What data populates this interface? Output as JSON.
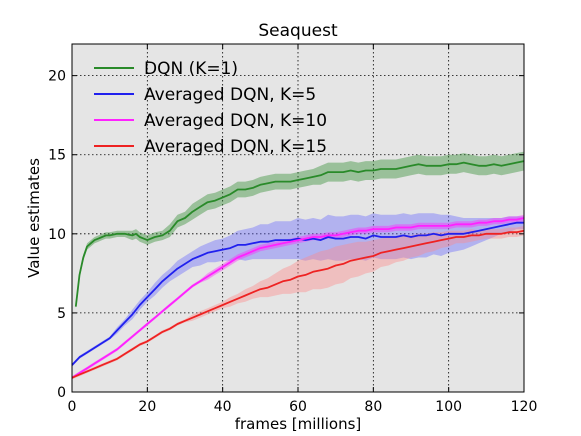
{
  "chart_data": {
    "type": "line",
    "title": "Seaquest",
    "xlabel": "frames [millions]",
    "ylabel": "Value estimates",
    "xlim": [
      0,
      120
    ],
    "ylim": [
      0,
      22
    ],
    "xticks": [
      0,
      20,
      40,
      60,
      80,
      100,
      120
    ],
    "yticks": [
      0,
      5,
      10,
      15,
      20
    ],
    "grid": true,
    "legend_position": "top-left",
    "background": "#e5e5e5",
    "series": [
      {
        "name": "DQN (K=1)",
        "color": "#2a8a2a",
        "band_color": "#2a8a2a",
        "x": [
          1,
          2,
          3,
          4,
          5,
          6,
          7,
          8,
          9,
          10,
          12,
          14,
          16,
          17,
          18,
          19,
          20,
          22,
          24,
          26,
          28,
          30,
          32,
          34,
          36,
          38,
          40,
          42,
          44,
          46,
          48,
          50,
          52,
          54,
          56,
          58,
          60,
          62,
          64,
          66,
          68,
          70,
          72,
          74,
          76,
          78,
          80,
          82,
          84,
          86,
          88,
          90,
          92,
          94,
          96,
          98,
          100,
          102,
          104,
          106,
          108,
          110,
          112,
          114,
          116,
          118,
          120
        ],
        "values": [
          5.4,
          7.4,
          8.5,
          9.2,
          9.4,
          9.6,
          9.7,
          9.8,
          9.9,
          9.9,
          10.0,
          10.0,
          9.9,
          10.0,
          9.8,
          9.7,
          9.6,
          9.8,
          9.9,
          10.2,
          10.8,
          11.0,
          11.4,
          11.7,
          12.0,
          12.1,
          12.3,
          12.5,
          12.8,
          12.8,
          12.9,
          13.1,
          13.2,
          13.3,
          13.3,
          13.3,
          13.4,
          13.5,
          13.6,
          13.7,
          13.9,
          13.9,
          13.9,
          14.0,
          13.9,
          14.0,
          14.0,
          14.1,
          14.1,
          14.1,
          14.2,
          14.3,
          14.4,
          14.3,
          14.3,
          14.3,
          14.4,
          14.4,
          14.5,
          14.4,
          14.3,
          14.3,
          14.4,
          14.3,
          14.4,
          14.5,
          14.6
        ],
        "spread": [
          0.1,
          0.2,
          0.2,
          0.2,
          0.2,
          0.2,
          0.2,
          0.2,
          0.2,
          0.2,
          0.2,
          0.2,
          0.3,
          0.3,
          0.3,
          0.3,
          0.3,
          0.3,
          0.3,
          0.4,
          0.4,
          0.4,
          0.5,
          0.5,
          0.5,
          0.5,
          0.5,
          0.5,
          0.5,
          0.5,
          0.5,
          0.5,
          0.5,
          0.5,
          0.5,
          0.5,
          0.5,
          0.5,
          0.5,
          0.6,
          0.6,
          0.6,
          0.6,
          0.6,
          0.6,
          0.6,
          0.6,
          0.6,
          0.6,
          0.6,
          0.6,
          0.6,
          0.6,
          0.6,
          0.6,
          0.6,
          0.6,
          0.6,
          0.6,
          0.6,
          0.6,
          0.6,
          0.6,
          0.6,
          0.6,
          0.6,
          0.6
        ]
      },
      {
        "name": "Averaged DQN, K=5",
        "color": "#2020ee",
        "band_color": "#6666ff",
        "x": [
          0,
          2,
          4,
          6,
          8,
          10,
          12,
          14,
          16,
          18,
          20,
          22,
          24,
          26,
          28,
          30,
          32,
          34,
          36,
          38,
          40,
          42,
          44,
          46,
          48,
          50,
          52,
          54,
          56,
          58,
          60,
          62,
          64,
          66,
          68,
          70,
          72,
          74,
          76,
          78,
          80,
          82,
          84,
          86,
          88,
          90,
          92,
          94,
          96,
          98,
          100,
          102,
          104,
          106,
          108,
          110,
          112,
          114,
          116,
          118,
          120
        ],
        "values": [
          1.7,
          2.2,
          2.5,
          2.8,
          3.1,
          3.4,
          3.9,
          4.4,
          4.9,
          5.5,
          6.0,
          6.5,
          7.0,
          7.4,
          7.8,
          8.1,
          8.4,
          8.6,
          8.8,
          8.9,
          9.0,
          9.1,
          9.3,
          9.3,
          9.4,
          9.5,
          9.5,
          9.6,
          9.6,
          9.6,
          9.7,
          9.6,
          9.7,
          9.6,
          9.8,
          9.7,
          9.7,
          9.8,
          9.8,
          9.7,
          9.9,
          9.8,
          9.8,
          9.8,
          9.9,
          9.8,
          9.9,
          9.9,
          10.0,
          9.9,
          10.0,
          10.0,
          10.0,
          10.1,
          10.2,
          10.3,
          10.4,
          10.5,
          10.6,
          10.7,
          10.7
        ],
        "spread": [
          0.1,
          0.1,
          0.1,
          0.1,
          0.1,
          0.1,
          0.2,
          0.2,
          0.3,
          0.3,
          0.3,
          0.4,
          0.4,
          0.4,
          0.5,
          0.5,
          0.5,
          0.6,
          0.6,
          0.7,
          0.7,
          0.8,
          0.9,
          1.0,
          1.0,
          1.1,
          1.1,
          1.2,
          1.2,
          1.2,
          1.3,
          1.3,
          1.3,
          1.3,
          1.4,
          1.4,
          1.4,
          1.4,
          1.4,
          1.4,
          1.4,
          1.4,
          1.4,
          1.4,
          1.4,
          1.4,
          1.4,
          1.4,
          1.3,
          1.3,
          1.2,
          1.1,
          1.0,
          0.9,
          0.8,
          0.7,
          0.6,
          0.5,
          0.5,
          0.4,
          0.4
        ]
      },
      {
        "name": "Averaged DQN, K=10",
        "color": "#ff22ff",
        "band_color": "#ff22ff",
        "x": [
          0,
          2,
          4,
          6,
          8,
          10,
          12,
          14,
          16,
          18,
          20,
          22,
          24,
          26,
          28,
          30,
          32,
          34,
          36,
          38,
          40,
          42,
          44,
          46,
          48,
          50,
          52,
          54,
          56,
          58,
          60,
          62,
          64,
          66,
          68,
          70,
          72,
          74,
          76,
          78,
          80,
          82,
          84,
          86,
          88,
          90,
          92,
          94,
          96,
          98,
          100,
          102,
          104,
          106,
          108,
          110,
          112,
          114,
          116,
          118,
          120
        ],
        "values": [
          0.9,
          1.2,
          1.5,
          1.8,
          2.1,
          2.4,
          2.7,
          3.1,
          3.5,
          3.9,
          4.3,
          4.7,
          5.1,
          5.5,
          5.9,
          6.3,
          6.7,
          7.0,
          7.3,
          7.6,
          7.9,
          8.2,
          8.5,
          8.7,
          8.9,
          9.1,
          9.2,
          9.3,
          9.4,
          9.5,
          9.6,
          9.7,
          9.8,
          9.8,
          9.9,
          9.9,
          10.0,
          10.1,
          10.2,
          10.2,
          10.3,
          10.3,
          10.3,
          10.4,
          10.4,
          10.4,
          10.5,
          10.5,
          10.5,
          10.5,
          10.5,
          10.6,
          10.6,
          10.6,
          10.7,
          10.7,
          10.8,
          10.8,
          10.9,
          10.9,
          11.0
        ],
        "spread": [
          0.1,
          0.1,
          0.1,
          0.1,
          0.1,
          0.1,
          0.1,
          0.1,
          0.1,
          0.1,
          0.1,
          0.1,
          0.1,
          0.1,
          0.1,
          0.1,
          0.1,
          0.1,
          0.2,
          0.2,
          0.2,
          0.2,
          0.2,
          0.2,
          0.2,
          0.2,
          0.2,
          0.2,
          0.2,
          0.2,
          0.2,
          0.2,
          0.2,
          0.2,
          0.2,
          0.2,
          0.2,
          0.2,
          0.2,
          0.2,
          0.2,
          0.2,
          0.2,
          0.2,
          0.2,
          0.2,
          0.2,
          0.2,
          0.2,
          0.2,
          0.2,
          0.2,
          0.2,
          0.2,
          0.2,
          0.2,
          0.2,
          0.2,
          0.2,
          0.2,
          0.2
        ]
      },
      {
        "name": "Averaged DQN, K=15",
        "color": "#ee2222",
        "band_color": "#ff8888",
        "x": [
          0,
          2,
          4,
          6,
          8,
          10,
          12,
          14,
          16,
          18,
          20,
          22,
          24,
          26,
          28,
          30,
          32,
          34,
          36,
          38,
          40,
          42,
          44,
          46,
          48,
          50,
          52,
          54,
          56,
          58,
          60,
          62,
          64,
          66,
          68,
          70,
          72,
          74,
          76,
          78,
          80,
          82,
          84,
          86,
          88,
          90,
          92,
          94,
          96,
          98,
          100,
          102,
          104,
          106,
          108,
          110,
          112,
          114,
          116,
          118,
          120
        ],
        "values": [
          0.9,
          1.1,
          1.3,
          1.5,
          1.7,
          1.9,
          2.1,
          2.4,
          2.7,
          3.0,
          3.2,
          3.5,
          3.8,
          4.0,
          4.3,
          4.5,
          4.7,
          4.9,
          5.1,
          5.3,
          5.5,
          5.7,
          5.9,
          6.1,
          6.3,
          6.5,
          6.6,
          6.8,
          7.0,
          7.1,
          7.3,
          7.4,
          7.6,
          7.7,
          7.8,
          8.0,
          8.1,
          8.3,
          8.4,
          8.5,
          8.6,
          8.8,
          8.9,
          9.0,
          9.1,
          9.2,
          9.3,
          9.4,
          9.5,
          9.6,
          9.7,
          9.8,
          9.8,
          9.9,
          9.9,
          10.0,
          10.0,
          10.0,
          10.1,
          10.1,
          10.2
        ],
        "spread": [
          0.1,
          0.1,
          0.1,
          0.1,
          0.1,
          0.1,
          0.1,
          0.1,
          0.1,
          0.1,
          0.1,
          0.1,
          0.1,
          0.1,
          0.1,
          0.1,
          0.2,
          0.2,
          0.2,
          0.2,
          0.2,
          0.3,
          0.3,
          0.4,
          0.4,
          0.5,
          0.6,
          0.7,
          0.8,
          0.9,
          1.0,
          1.1,
          1.1,
          1.2,
          1.2,
          1.2,
          1.2,
          1.1,
          1.1,
          1.0,
          1.0,
          0.9,
          0.9,
          0.8,
          0.8,
          0.7,
          0.7,
          0.6,
          0.6,
          0.5,
          0.5,
          0.4,
          0.4,
          0.4,
          0.3,
          0.3,
          0.3,
          0.3,
          0.3,
          0.3,
          0.3
        ]
      }
    ]
  }
}
